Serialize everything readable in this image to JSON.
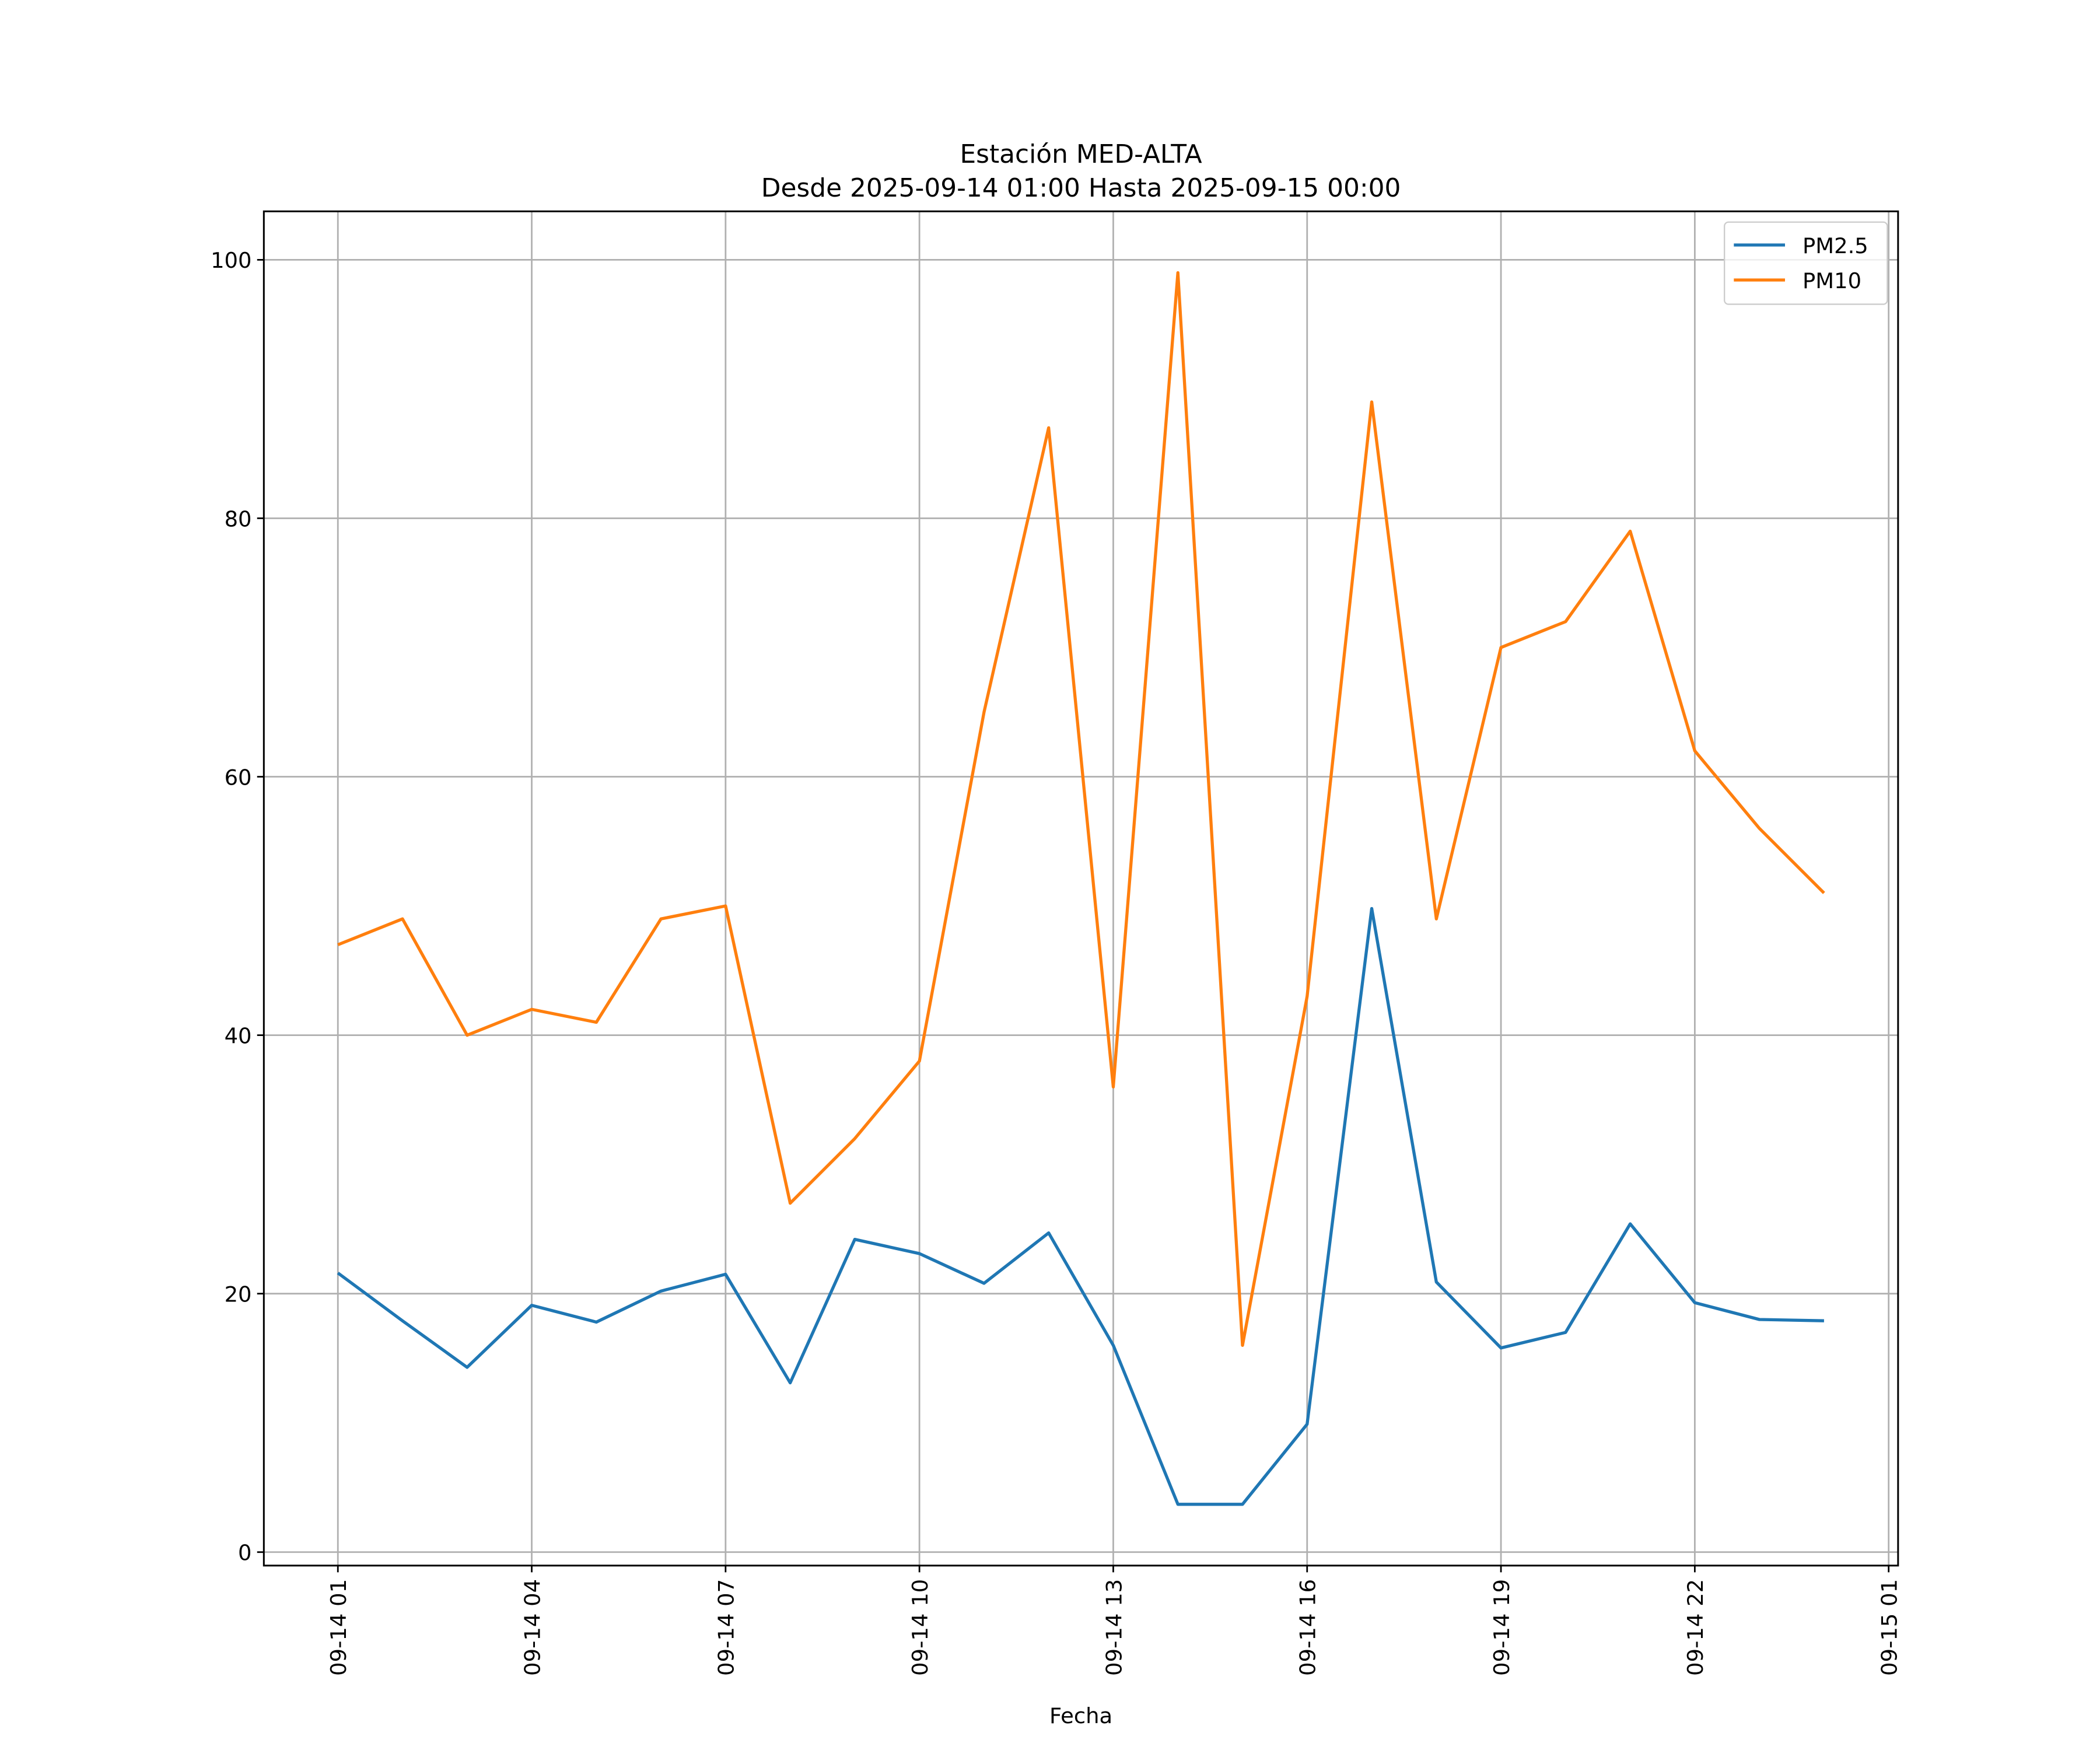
{
  "chart_data": {
    "type": "line",
    "title": "Estación MED-ALTA",
    "subtitle": "Desde 2025-09-14 01:00 Hasta 2025-09-15 00:00",
    "xlabel": "Fecha",
    "ylabel": "",
    "x_hours": [
      1,
      2,
      3,
      4,
      5,
      6,
      7,
      8,
      9,
      10,
      11,
      12,
      13,
      14,
      15,
      16,
      17,
      18,
      19,
      20,
      21,
      22,
      23,
      24
    ],
    "x_note": "hours since 2025-09-14 00:00",
    "xlim": [
      -0.15,
      25.2
    ],
    "ylim": [
      -1,
      104
    ],
    "xticks": [
      {
        "hour": 1,
        "label": "09-14 01"
      },
      {
        "hour": 4,
        "label": "09-14 04"
      },
      {
        "hour": 7,
        "label": "09-14 07"
      },
      {
        "hour": 10,
        "label": "09-14 10"
      },
      {
        "hour": 13,
        "label": "09-14 13"
      },
      {
        "hour": 16,
        "label": "09-14 16"
      },
      {
        "hour": 19,
        "label": "09-14 19"
      },
      {
        "hour": 22,
        "label": "09-14 22"
      },
      {
        "hour": 25,
        "label": "09-15 01"
      }
    ],
    "yticks": [
      {
        "value": 0,
        "label": "0"
      },
      {
        "value": 20,
        "label": "20"
      },
      {
        "value": 40,
        "label": "40"
      },
      {
        "value": 60,
        "label": "60"
      },
      {
        "value": 80,
        "label": "80"
      },
      {
        "value": 100,
        "label": "100"
      }
    ],
    "grid": true,
    "legend_position": "top-right",
    "series": [
      {
        "name": "PM2.5",
        "color": "#1f77b4",
        "values": [
          21.6,
          17.9,
          14.3,
          19.1,
          17.8,
          20.2,
          21.5,
          13.1,
          24.2,
          23.1,
          20.8,
          24.7,
          16.0,
          3.7,
          3.7,
          9.9,
          49.8,
          20.9,
          15.8,
          17.0,
          25.4,
          19.3,
          18.0,
          17.9
        ]
      },
      {
        "name": "PM10",
        "color": "#ff7f0e",
        "values": [
          47,
          49,
          40,
          42,
          41,
          49,
          50,
          27,
          32,
          38,
          65,
          87,
          36,
          99,
          16,
          43,
          89,
          49,
          70,
          72,
          79,
          62,
          56,
          51
        ]
      }
    ]
  }
}
